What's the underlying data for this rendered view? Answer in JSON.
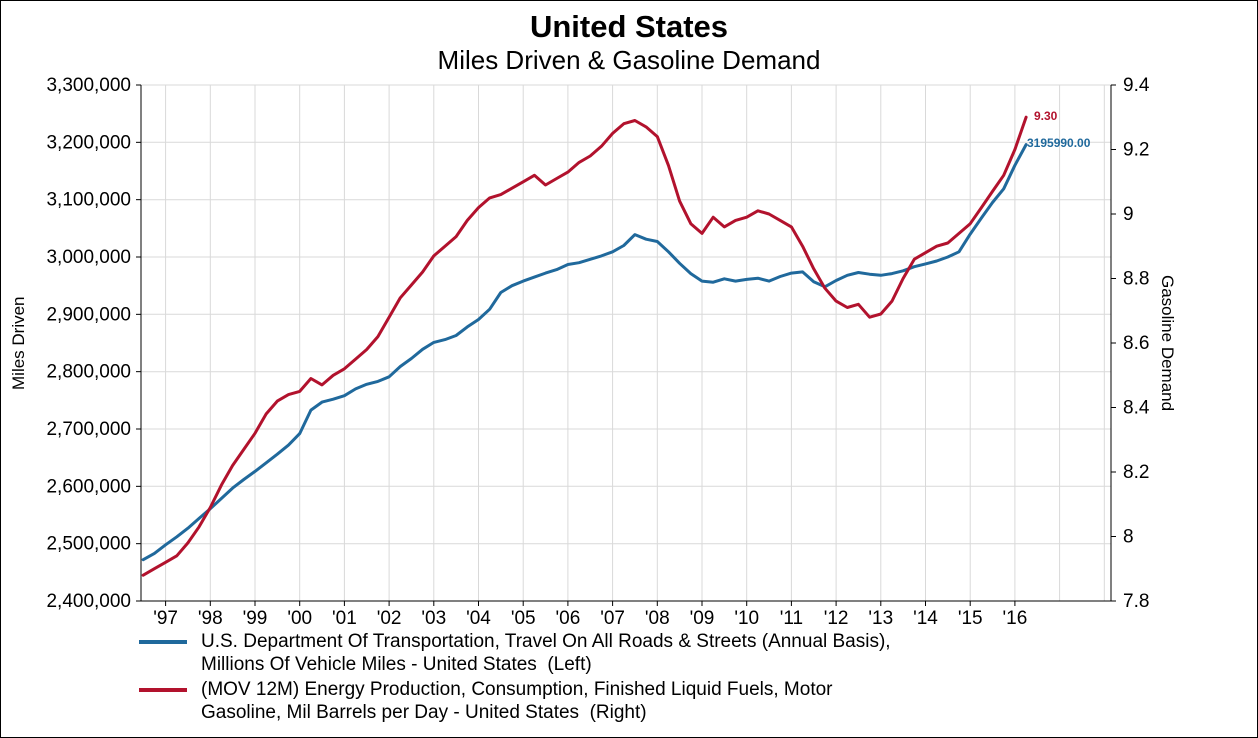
{
  "chart_data": {
    "type": "line",
    "title": "United States",
    "subtitle": "Miles Driven & Gasoline Demand",
    "grid_color": "#d9d9d9",
    "axis_color": "#000000",
    "xlim": [
      1996.45,
      2018.15
    ],
    "grid_years": [
      1997,
      1998,
      1999,
      2000,
      2001,
      2002,
      2003,
      2004,
      2005,
      2006,
      2007,
      2008,
      2009,
      2010,
      2011,
      2012,
      2013,
      2014,
      2015,
      2016,
      2017,
      2018
    ],
    "x_tick_years": [
      1997,
      1998,
      1999,
      2000,
      2001,
      2002,
      2003,
      2004,
      2005,
      2006,
      2007,
      2008,
      2009,
      2010,
      2011,
      2012,
      2013,
      2014,
      2015,
      2016
    ],
    "x_tick_labels": [
      "'97",
      "'98",
      "'99",
      "'00",
      "'01",
      "'02",
      "'03",
      "'04",
      "'05",
      "'06",
      "'07",
      "'08",
      "'09",
      "'10",
      "'11",
      "'12",
      "'13",
      "'14",
      "'15",
      "'16"
    ],
    "left_axis": {
      "title": "Miles Driven",
      "min": 2400000,
      "max": 3300000,
      "tick_values": [
        3300000,
        3200000,
        3100000,
        3000000,
        2900000,
        2800000,
        2700000,
        2600000,
        2500000,
        2400000
      ],
      "tick_labels": [
        "3,300,000",
        "3,200,000",
        "3,100,000",
        "3,000,000",
        "2,900,000",
        "2,800,000",
        "2,700,000",
        "2,600,000",
        "2,500,000",
        "2,400,000"
      ]
    },
    "right_axis": {
      "title": "Gasoline Demand",
      "min": 7.8,
      "max": 9.4,
      "tick_values": [
        9.4,
        9.2,
        9.0,
        8.8,
        8.6,
        8.4,
        8.2,
        8.0,
        7.8
      ],
      "tick_labels": [
        "9.4",
        "9.2",
        "9",
        "8.8",
        "8.6",
        "8.4",
        "8.2",
        "8",
        "7.8"
      ]
    },
    "x": [
      1996.5,
      1996.75,
      1997,
      1997.25,
      1997.5,
      1997.75,
      1998,
      1998.25,
      1998.5,
      1998.75,
      1999,
      1999.25,
      1999.5,
      1999.75,
      2000,
      2000.25,
      2000.5,
      2000.75,
      2001,
      2001.25,
      2001.5,
      2001.75,
      2002,
      2002.25,
      2002.5,
      2002.75,
      2003,
      2003.25,
      2003.5,
      2003.75,
      2004,
      2004.25,
      2004.5,
      2004.75,
      2005,
      2005.25,
      2005.5,
      2005.75,
      2006,
      2006.25,
      2006.5,
      2006.75,
      2007,
      2007.25,
      2007.5,
      2007.75,
      2008,
      2008.25,
      2008.5,
      2008.75,
      2009,
      2009.25,
      2009.5,
      2009.75,
      2010,
      2010.25,
      2010.5,
      2010.75,
      2011,
      2011.25,
      2011.5,
      2011.75,
      2012,
      2012.25,
      2012.5,
      2012.75,
      2013,
      2013.25,
      2013.5,
      2013.75,
      2014,
      2014.25,
      2014.5,
      2014.75,
      2015,
      2015.25,
      2015.5,
      2015.75,
      2016,
      2016.25
    ],
    "series": [
      {
        "name": "miles-driven",
        "axis": "left",
        "color": "#20699c",
        "end_label": "3195990.00",
        "legend_line1": "U.S. Department Of Transportation, Travel On All Roads & Streets (Annual Basis),",
        "legend_line2": "Millions Of Vehicle Miles - United States  (Left)",
        "values": [
          2472000,
          2483000,
          2498000,
          2512000,
          2527000,
          2544000,
          2561000,
          2579000,
          2597000,
          2612000,
          2626000,
          2641000,
          2656000,
          2672000,
          2692000,
          2733000,
          2747000,
          2752000,
          2758000,
          2770000,
          2778000,
          2783000,
          2791000,
          2809000,
          2823000,
          2839000,
          2851000,
          2856000,
          2863000,
          2878000,
          2891000,
          2909000,
          2938000,
          2950000,
          2958000,
          2965000,
          2972000,
          2978000,
          2987000,
          2990000,
          2996000,
          3002000,
          3009000,
          3020000,
          3039000,
          3031000,
          3027000,
          3009000,
          2989000,
          2971000,
          2958000,
          2956000,
          2962000,
          2958000,
          2961000,
          2963000,
          2958000,
          2966000,
          2972000,
          2974000,
          2957000,
          2948000,
          2959000,
          2968000,
          2973000,
          2970000,
          2968000,
          2971000,
          2976000,
          2983000,
          2988000,
          2993000,
          3000000,
          3009000,
          3040000,
          3068000,
          3095000,
          3119000,
          3160000,
          3195990
        ]
      },
      {
        "name": "gasoline-demand",
        "axis": "right",
        "color": "#b2122d",
        "end_label": "9.30",
        "legend_line1": "(MOV 12M) Energy Production, Consumption, Finished Liquid Fuels, Motor",
        "legend_line2": "Gasoline, Mil Barrels per Day - United States  (Right)",
        "values": [
          7.88,
          7.9,
          7.92,
          7.94,
          7.98,
          8.03,
          8.09,
          8.16,
          8.22,
          8.27,
          8.32,
          8.38,
          8.42,
          8.44,
          8.45,
          8.49,
          8.47,
          8.5,
          8.52,
          8.55,
          8.58,
          8.62,
          8.68,
          8.74,
          8.78,
          8.82,
          8.87,
          8.9,
          8.93,
          8.98,
          9.02,
          9.05,
          9.06,
          9.08,
          9.1,
          9.12,
          9.09,
          9.11,
          9.13,
          9.16,
          9.18,
          9.21,
          9.25,
          9.28,
          9.29,
          9.27,
          9.24,
          9.15,
          9.04,
          8.97,
          8.94,
          8.99,
          8.96,
          8.98,
          8.99,
          9.01,
          9.0,
          8.98,
          8.96,
          8.9,
          8.83,
          8.77,
          8.73,
          8.71,
          8.72,
          8.68,
          8.69,
          8.73,
          8.8,
          8.86,
          8.88,
          8.9,
          8.91,
          8.94,
          8.97,
          9.02,
          9.07,
          9.12,
          9.2,
          9.3
        ]
      }
    ]
  }
}
